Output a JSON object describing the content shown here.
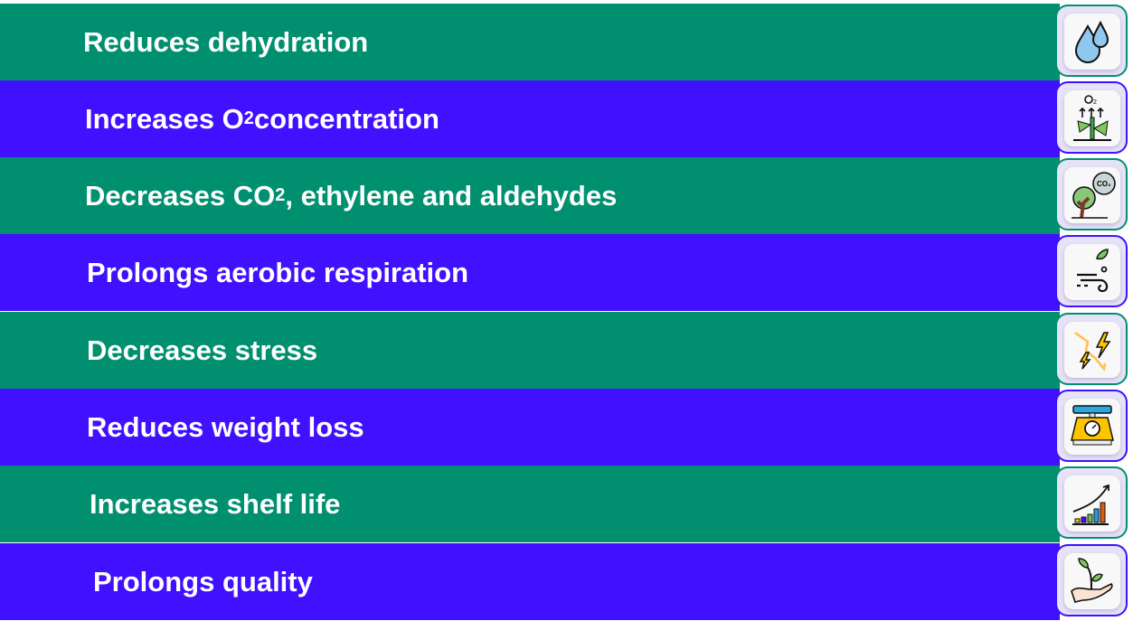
{
  "colors": {
    "green": "#009070",
    "purple": "#4010ff",
    "icon_box": "#e6e2f7"
  },
  "rows": [
    {
      "text": "Reduces dehydration",
      "color": "green",
      "icon": "water-drops-icon"
    },
    {
      "text_before": "Increases O",
      "sub": "2",
      "text_after": " concentration",
      "color": "purple",
      "icon": "plant-oxygen-icon"
    },
    {
      "text_before": "Decreases CO",
      "sub": "2",
      "text_after": ", ethylene and aldehydes",
      "color": "green",
      "icon": "tree-co2-icon"
    },
    {
      "text": "Prolongs aerobic respiration",
      "color": "purple",
      "icon": "wind-leaf-icon"
    },
    {
      "text": "Decreases stress",
      "color": "green",
      "icon": "lightning-stress-icon"
    },
    {
      "text": "Reduces weight loss",
      "color": "purple",
      "icon": "weighing-scale-icon"
    },
    {
      "text": "Increases shelf life",
      "color": "green",
      "icon": "growth-chart-icon"
    },
    {
      "text": "Prolongs quality",
      "color": "purple",
      "icon": "hand-sprout-icon"
    }
  ],
  "icon_text": {
    "o2": "O2",
    "co2": "CO2"
  }
}
